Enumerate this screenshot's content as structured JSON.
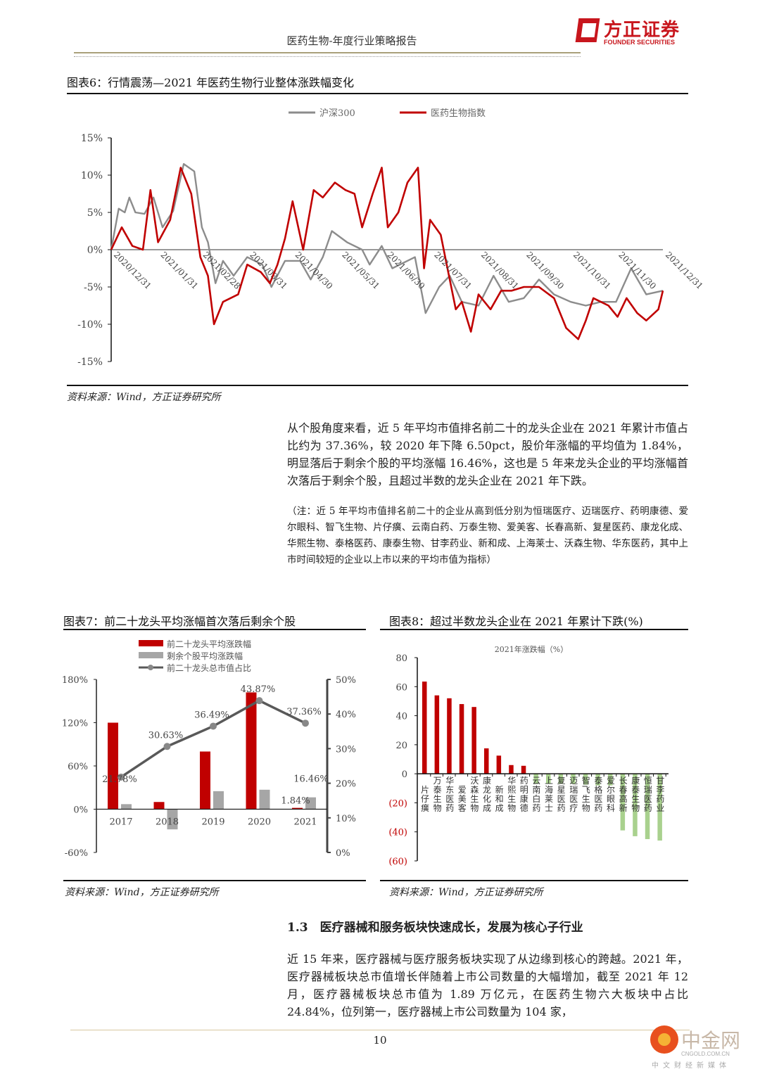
{
  "header": {
    "title": "医药生物-年度行业策略报告",
    "logo_cn": "方正证券",
    "logo_en": "FOUNDER SECURITIES"
  },
  "fig6": {
    "title": "图表6：行情震荡—2021 年医药生物行业整体涨跌幅变化",
    "source": "资料来源：Wind，方正证券研究所"
  },
  "fig7": {
    "title": "图表7：前二十龙头平均涨幅首次落后剩余个股",
    "source": "资料来源：Wind，方正证券研究所"
  },
  "fig8": {
    "title": "图表8：超过半数龙头企业在 2021 年累计下跌(%)",
    "source": "资料来源：Wind，方正证券研究所"
  },
  "body": {
    "paragraph1": "从个股角度来看，近 5 年平均市值排名前二十的龙头企业在 2021 年累计市值占比约为 37.36%，较 2020 年下降 6.50pct，股价年涨幅的平均值为 1.84%，明显落后于剩余个股的平均涨幅 16.46%，这也是 5 年来龙头企业的平均涨幅首次落后于剩余个股，且超过半数的龙头企业在 2021 年下跌。",
    "note": "（注：近 5 年平均市值排名前二十的企业从高到低分别为恒瑞医疗、迈瑞医疗、药明康德、爱尔眼科、智飞生物、片仔癀、云南白药、万泰生物、爱美客、长春高新、复星医药、康龙化成、华熙生物、泰格医药、康泰生物、甘李药业、新和成、上海莱士、沃森生物、华东医药，其中上市时间较短的企业以上市以来的平均市值为指标）",
    "section_heading": "1.3　医疗器械和服务板块快速成长，发展为核心子行业",
    "paragraph2": "近 15 年来，医疗器械与医疗服务板块实现了从边缘到核心的跨越。2021 年，医疗器械板块总市值增长伴随着上市公司数量的大幅增加，截至 2021 年 12 月，医疗器械板块总市值为 1.89 万亿元，在医药生物六大板块中占比 24.84%，位列第一，医疗器械上市公司数量为 104 家，"
  },
  "footer": {
    "page": "10",
    "watermark_cn": "中金网",
    "watermark_en": "CNGOLD.COM.CN",
    "watermark_sub": "中文财经新媒体"
  },
  "chart_data": [
    {
      "type": "line",
      "ylim": [
        -15,
        15
      ],
      "yticks": [
        "15%",
        "10%",
        "5%",
        "0%",
        "-5%",
        "-10%",
        "-15%"
      ],
      "ytick_values": [
        15,
        10,
        5,
        0,
        -5,
        -10,
        -15
      ],
      "xticks": [
        "2020/12/31",
        "2021/01/31",
        "2021/02/28",
        "2021/03/31",
        "2021/04/30",
        "2021/05/31",
        "2021/06/30",
        "2021/07/31",
        "2021/08/31",
        "2021/09/30",
        "2021/10/31",
        "2021/11/30",
        "2021/12/31"
      ],
      "legend_placement": "top",
      "colors": {
        "沪深300": "#8c8c8c",
        "医药生物指数": "#c00000"
      },
      "series": [
        {
          "name": "沪深300",
          "points": [
            [
              "2020-12-31",
              0
            ],
            [
              "2021-01-05",
              5.5
            ],
            [
              "2021-01-09",
              5
            ],
            [
              "2021-01-12",
              7
            ],
            [
              "2021-01-16",
              5
            ],
            [
              "2021-01-22",
              4.8
            ],
            [
              "2021-01-28",
              7
            ],
            [
              "2021-02-03",
              3
            ],
            [
              "2021-02-10",
              5.2
            ],
            [
              "2021-02-17",
              11.5
            ],
            [
              "2021-02-24",
              10.5
            ],
            [
              "2021-03-01",
              3
            ],
            [
              "2021-03-05",
              1
            ],
            [
              "2021-03-10",
              -4.5
            ],
            [
              "2021-03-15",
              -1.5
            ],
            [
              "2021-03-22",
              -3.5
            ],
            [
              "2021-03-31",
              -1
            ],
            [
              "2021-04-10",
              -2
            ],
            [
              "2021-04-16",
              -5
            ],
            [
              "2021-04-25",
              -1.5
            ],
            [
              "2021-05-05",
              -1.5
            ],
            [
              "2021-05-12",
              -4
            ],
            [
              "2021-05-20",
              -1
            ],
            [
              "2021-05-26",
              2.5
            ],
            [
              "2021-06-05",
              1
            ],
            [
              "2021-06-15",
              0
            ],
            [
              "2021-06-20",
              -2
            ],
            [
              "2021-06-28",
              0.5
            ],
            [
              "2021-07-05",
              -2.5
            ],
            [
              "2021-07-20",
              -1
            ],
            [
              "2021-07-27",
              -8.5
            ],
            [
              "2021-08-05",
              -5
            ],
            [
              "2021-08-12",
              -3.5
            ],
            [
              "2021-08-20",
              -7
            ],
            [
              "2021-08-31",
              -7.5
            ],
            [
              "2021-09-10",
              -3.5
            ],
            [
              "2021-09-20",
              -7
            ],
            [
              "2021-09-30",
              -6.5
            ],
            [
              "2021-10-10",
              -4
            ],
            [
              "2021-10-20",
              -6
            ],
            [
              "2021-10-31",
              -7
            ],
            [
              "2021-11-10",
              -7.5
            ],
            [
              "2021-11-20",
              -7
            ],
            [
              "2021-11-30",
              -7
            ],
            [
              "2021-12-10",
              -2.5
            ],
            [
              "2021-12-20",
              -6
            ],
            [
              "2021-12-31",
              -5.5
            ]
          ]
        },
        {
          "name": "医药生物指数",
          "points": [
            [
              "2020-12-31",
              0
            ],
            [
              "2021-01-07",
              3
            ],
            [
              "2021-01-14",
              0.5
            ],
            [
              "2021-01-21",
              0
            ],
            [
              "2021-01-26",
              8
            ],
            [
              "2021-01-31",
              1
            ],
            [
              "2021-02-08",
              4
            ],
            [
              "2021-02-15",
              11
            ],
            [
              "2021-02-22",
              7.5
            ],
            [
              "2021-02-28",
              -1
            ],
            [
              "2021-03-05",
              -3.5
            ],
            [
              "2021-03-09",
              -10
            ],
            [
              "2021-03-15",
              -7
            ],
            [
              "2021-03-25",
              -6
            ],
            [
              "2021-03-31",
              -2
            ],
            [
              "2021-04-09",
              -3
            ],
            [
              "2021-04-15",
              -4.5
            ],
            [
              "2021-04-20",
              -2
            ],
            [
              "2021-04-25",
              1.5
            ],
            [
              "2021-04-30",
              6.5
            ],
            [
              "2021-05-07",
              0
            ],
            [
              "2021-05-14",
              8
            ],
            [
              "2021-05-20",
              7
            ],
            [
              "2021-05-28",
              9
            ],
            [
              "2021-06-04",
              8
            ],
            [
              "2021-06-10",
              7.5
            ],
            [
              "2021-06-15",
              3
            ],
            [
              "2021-06-22",
              7.5
            ],
            [
              "2021-06-28",
              11
            ],
            [
              "2021-07-02",
              3
            ],
            [
              "2021-07-09",
              5
            ],
            [
              "2021-07-15",
              9
            ],
            [
              "2021-07-22",
              11
            ],
            [
              "2021-07-26",
              -2.5
            ],
            [
              "2021-07-30",
              4
            ],
            [
              "2021-08-06",
              2
            ],
            [
              "2021-08-10",
              -2
            ],
            [
              "2021-08-16",
              -8
            ],
            [
              "2021-08-20",
              -7
            ],
            [
              "2021-08-26",
              -11
            ],
            [
              "2021-08-31",
              -6
            ],
            [
              "2021-09-08",
              -8
            ],
            [
              "2021-09-15",
              -5.5
            ],
            [
              "2021-09-22",
              -5.5
            ],
            [
              "2021-09-30",
              -5
            ],
            [
              "2021-10-10",
              -5
            ],
            [
              "2021-10-20",
              -6.5
            ],
            [
              "2021-10-28",
              -10.5
            ],
            [
              "2021-11-05",
              -12
            ],
            [
              "2021-11-10",
              -9.5
            ],
            [
              "2021-11-15",
              -6.5
            ],
            [
              "2021-11-25",
              -7.5
            ],
            [
              "2021-12-01",
              -9
            ],
            [
              "2021-12-07",
              -6.5
            ],
            [
              "2021-12-14",
              -8.5
            ],
            [
              "2021-12-20",
              -9.5
            ],
            [
              "2021-12-28",
              -8
            ],
            [
              "2021-12-31",
              -5.5
            ]
          ]
        }
      ]
    },
    {
      "type": "bar",
      "categories": [
        "2017",
        "2018",
        "2019",
        "2020",
        "2021"
      ],
      "ylim_left": [
        -60,
        180
      ],
      "ylim_right": [
        0,
        50
      ],
      "yticks_left": [
        "180%",
        "120%",
        "60%",
        "0%",
        "-60%"
      ],
      "yticks_right": [
        "50%",
        "40%",
        "30%",
        "20%",
        "10%",
        "0%"
      ],
      "legend_placement": "top",
      "series": [
        {
          "name": "前二十龙头平均涨跌幅",
          "kind": "bar",
          "color": "#c00000",
          "values": [
            120,
            10,
            80,
            162,
            1.84
          ],
          "labels": [
            "",
            "",
            "",
            "",
            "1.84%"
          ]
        },
        {
          "name": "剩余个股平均涨跌幅",
          "kind": "bar",
          "color": "#a6a6a6",
          "values": [
            7,
            -28,
            25,
            27,
            16.46
          ],
          "labels": [
            "",
            "",
            "",
            "",
            "16.46%"
          ]
        },
        {
          "name": "前二十龙头总市值占比",
          "kind": "line",
          "axis": "right",
          "color": "#595959",
          "values": [
            21.78,
            30.63,
            36.49,
            43.87,
            37.36
          ],
          "labels": [
            "21.78%",
            "30.63%",
            "36.49%",
            "43.87%",
            "37.36%"
          ]
        }
      ]
    },
    {
      "type": "bar",
      "title": "2021年涨跌幅（%）",
      "ylim": [
        -60,
        80
      ],
      "yticks": [
        "80",
        "60",
        "40",
        "20",
        "0",
        "(20)",
        "(40)",
        "(60)"
      ],
      "ytick_values": [
        80,
        60,
        40,
        20,
        0,
        -20,
        -40,
        -60
      ],
      "colors": {
        "positive": "#c00000",
        "negative": "#a9d18e",
        "negative_tick": "#c00000"
      },
      "categories": [
        "片仔癀",
        "万泰生物",
        "华东医药",
        "爱美客",
        "沃森生物",
        "康龙化成",
        "新和成",
        "华熙生物",
        "药明康德",
        "云南白药",
        "上海莱士",
        "复星医药",
        "迈瑞医疗",
        "智飞生物",
        "泰格医药",
        "爱尔眼科",
        "长春高新",
        "康泰生物",
        "恒瑞医药",
        "甘李药业"
      ],
      "values": [
        63.5,
        54,
        52,
        48,
        46,
        17.5,
        12.5,
        6,
        5.5,
        -7,
        -7,
        -7,
        -7,
        -7.5,
        -8,
        -8,
        -39,
        -43,
        -45,
        -46
      ]
    }
  ]
}
